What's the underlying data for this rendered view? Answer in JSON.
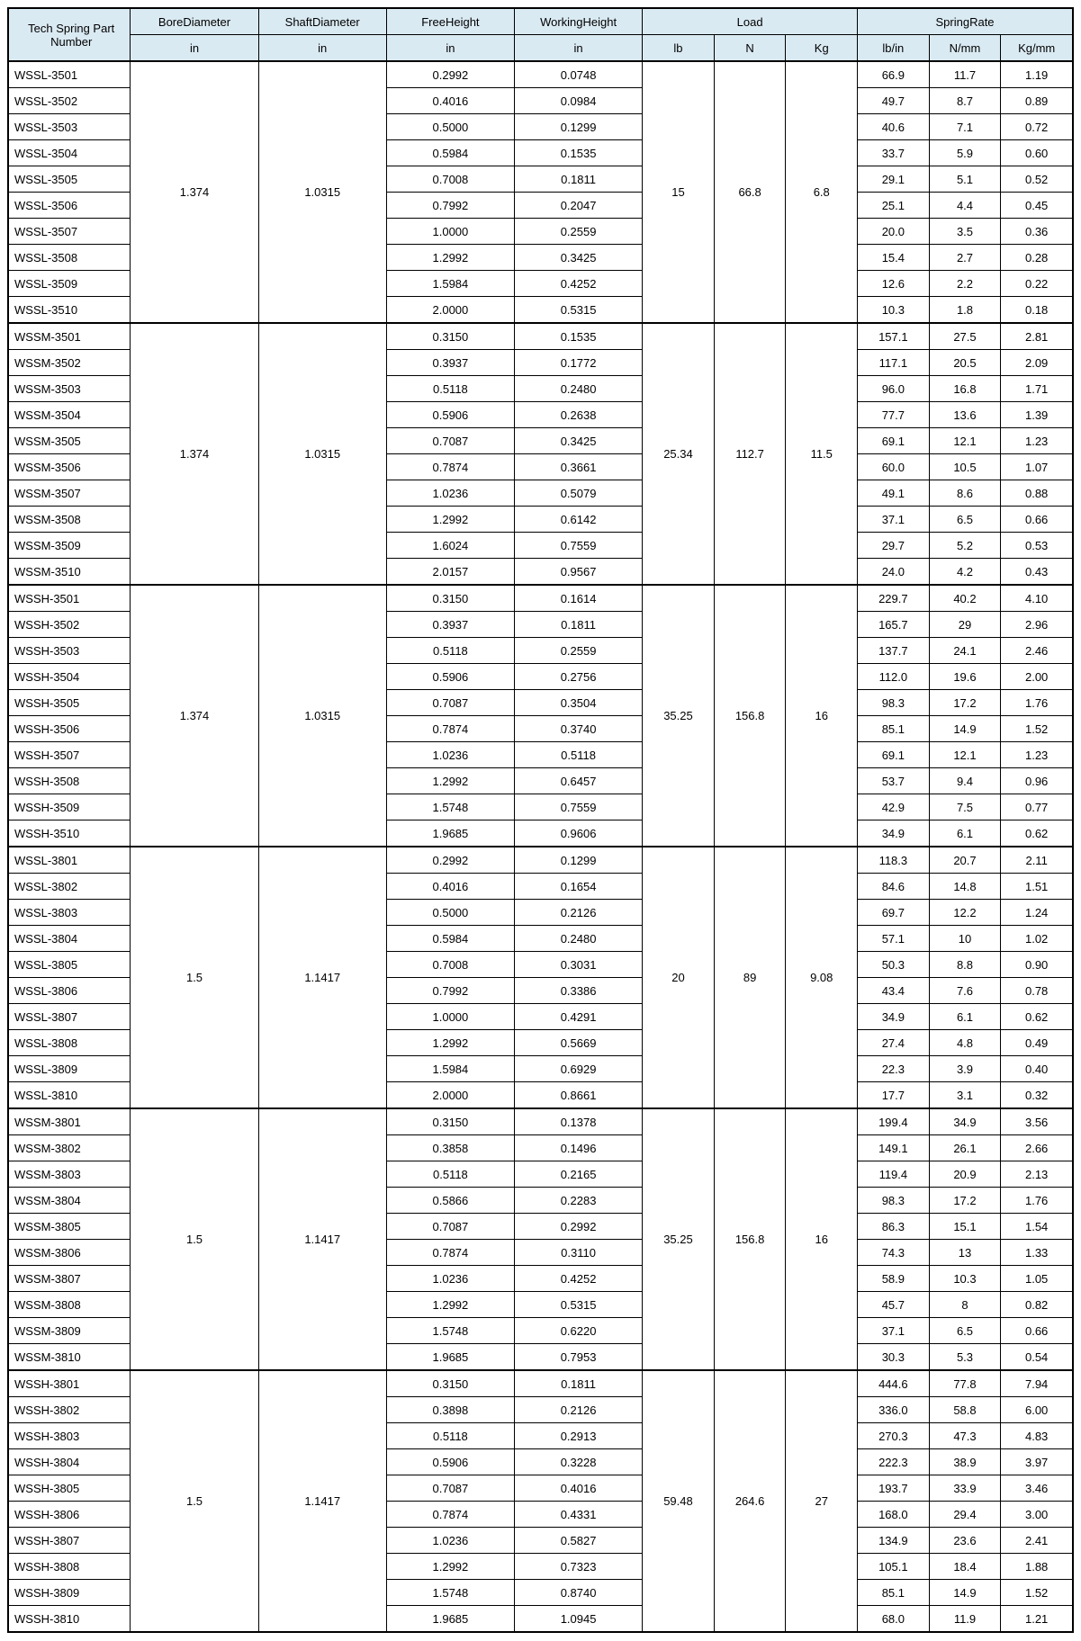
{
  "header": {
    "part": "Tech Spring Part Number",
    "bore": "BoreDiameter",
    "shaft": "ShaftDiameter",
    "free": "FreeHeight",
    "work": "WorkingHeight",
    "load": "Load",
    "rate": "SpringRate",
    "unit_in": "in",
    "unit_lb": "lb",
    "unit_n": "N",
    "unit_kg": "Kg",
    "unit_lbin": "lb/in",
    "unit_nmm": "N/mm",
    "unit_kgmm": "Kg/mm"
  },
  "groups": [
    {
      "bore": "1.374",
      "shaft": "1.0315",
      "load_lb": "15",
      "load_n": "66.8",
      "load_kg": "6.8",
      "rows": [
        {
          "part": "WSSL-3501",
          "fh": "0.2992",
          "wh": "0.0748",
          "lbin": "66.9",
          "nmm": "11.7",
          "kgmm": "1.19"
        },
        {
          "part": "WSSL-3502",
          "fh": "0.4016",
          "wh": "0.0984",
          "lbin": "49.7",
          "nmm": "8.7",
          "kgmm": "0.89"
        },
        {
          "part": "WSSL-3503",
          "fh": "0.5000",
          "wh": "0.1299",
          "lbin": "40.6",
          "nmm": "7.1",
          "kgmm": "0.72"
        },
        {
          "part": "WSSL-3504",
          "fh": "0.5984",
          "wh": "0.1535",
          "lbin": "33.7",
          "nmm": "5.9",
          "kgmm": "0.60"
        },
        {
          "part": "WSSL-3505",
          "fh": "0.7008",
          "wh": "0.1811",
          "lbin": "29.1",
          "nmm": "5.1",
          "kgmm": "0.52"
        },
        {
          "part": "WSSL-3506",
          "fh": "0.7992",
          "wh": "0.2047",
          "lbin": "25.1",
          "nmm": "4.4",
          "kgmm": "0.45"
        },
        {
          "part": "WSSL-3507",
          "fh": "1.0000",
          "wh": "0.2559",
          "lbin": "20.0",
          "nmm": "3.5",
          "kgmm": "0.36"
        },
        {
          "part": "WSSL-3508",
          "fh": "1.2992",
          "wh": "0.3425",
          "lbin": "15.4",
          "nmm": "2.7",
          "kgmm": "0.28"
        },
        {
          "part": "WSSL-3509",
          "fh": "1.5984",
          "wh": "0.4252",
          "lbin": "12.6",
          "nmm": "2.2",
          "kgmm": "0.22"
        },
        {
          "part": "WSSL-3510",
          "fh": "2.0000",
          "wh": "0.5315",
          "lbin": "10.3",
          "nmm": "1.8",
          "kgmm": "0.18"
        }
      ]
    },
    {
      "bore": "1.374",
      "shaft": "1.0315",
      "load_lb": "25.34",
      "load_n": "112.7",
      "load_kg": "11.5",
      "rows": [
        {
          "part": "WSSM-3501",
          "fh": "0.3150",
          "wh": "0.1535",
          "lbin": "157.1",
          "nmm": "27.5",
          "kgmm": "2.81"
        },
        {
          "part": "WSSM-3502",
          "fh": "0.3937",
          "wh": "0.1772",
          "lbin": "117.1",
          "nmm": "20.5",
          "kgmm": "2.09"
        },
        {
          "part": "WSSM-3503",
          "fh": "0.5118",
          "wh": "0.2480",
          "lbin": "96.0",
          "nmm": "16.8",
          "kgmm": "1.71"
        },
        {
          "part": "WSSM-3504",
          "fh": "0.5906",
          "wh": "0.2638",
          "lbin": "77.7",
          "nmm": "13.6",
          "kgmm": "1.39"
        },
        {
          "part": "WSSM-3505",
          "fh": "0.7087",
          "wh": "0.3425",
          "lbin": "69.1",
          "nmm": "12.1",
          "kgmm": "1.23"
        },
        {
          "part": "WSSM-3506",
          "fh": "0.7874",
          "wh": "0.3661",
          "lbin": "60.0",
          "nmm": "10.5",
          "kgmm": "1.07"
        },
        {
          "part": "WSSM-3507",
          "fh": "1.0236",
          "wh": "0.5079",
          "lbin": "49.1",
          "nmm": "8.6",
          "kgmm": "0.88"
        },
        {
          "part": "WSSM-3508",
          "fh": "1.2992",
          "wh": "0.6142",
          "lbin": "37.1",
          "nmm": "6.5",
          "kgmm": "0.66"
        },
        {
          "part": "WSSM-3509",
          "fh": "1.6024",
          "wh": "0.7559",
          "lbin": "29.7",
          "nmm": "5.2",
          "kgmm": "0.53"
        },
        {
          "part": "WSSM-3510",
          "fh": "2.0157",
          "wh": "0.9567",
          "lbin": "24.0",
          "nmm": "4.2",
          "kgmm": "0.43"
        }
      ]
    },
    {
      "bore": "1.374",
      "shaft": "1.0315",
      "load_lb": "35.25",
      "load_n": "156.8",
      "load_kg": "16",
      "rows": [
        {
          "part": "WSSH-3501",
          "fh": "0.3150",
          "wh": "0.1614",
          "lbin": "229.7",
          "nmm": "40.2",
          "kgmm": "4.10"
        },
        {
          "part": "WSSH-3502",
          "fh": "0.3937",
          "wh": "0.1811",
          "lbin": "165.7",
          "nmm": "29",
          "kgmm": "2.96"
        },
        {
          "part": "WSSH-3503",
          "fh": "0.5118",
          "wh": "0.2559",
          "lbin": "137.7",
          "nmm": "24.1",
          "kgmm": "2.46"
        },
        {
          "part": "WSSH-3504",
          "fh": "0.5906",
          "wh": "0.2756",
          "lbin": "112.0",
          "nmm": "19.6",
          "kgmm": "2.00"
        },
        {
          "part": "WSSH-3505",
          "fh": "0.7087",
          "wh": "0.3504",
          "lbin": "98.3",
          "nmm": "17.2",
          "kgmm": "1.76"
        },
        {
          "part": "WSSH-3506",
          "fh": "0.7874",
          "wh": "0.3740",
          "lbin": "85.1",
          "nmm": "14.9",
          "kgmm": "1.52"
        },
        {
          "part": "WSSH-3507",
          "fh": "1.0236",
          "wh": "0.5118",
          "lbin": "69.1",
          "nmm": "12.1",
          "kgmm": "1.23"
        },
        {
          "part": "WSSH-3508",
          "fh": "1.2992",
          "wh": "0.6457",
          "lbin": "53.7",
          "nmm": "9.4",
          "kgmm": "0.96"
        },
        {
          "part": "WSSH-3509",
          "fh": "1.5748",
          "wh": "0.7559",
          "lbin": "42.9",
          "nmm": "7.5",
          "kgmm": "0.77"
        },
        {
          "part": "WSSH-3510",
          "fh": "1.9685",
          "wh": "0.9606",
          "lbin": "34.9",
          "nmm": "6.1",
          "kgmm": "0.62"
        }
      ]
    },
    {
      "bore": "1.5",
      "shaft": "1.1417",
      "load_lb": "20",
      "load_n": "89",
      "load_kg": "9.08",
      "rows": [
        {
          "part": "WSSL-3801",
          "fh": "0.2992",
          "wh": "0.1299",
          "lbin": "118.3",
          "nmm": "20.7",
          "kgmm": "2.11"
        },
        {
          "part": "WSSL-3802",
          "fh": "0.4016",
          "wh": "0.1654",
          "lbin": "84.6",
          "nmm": "14.8",
          "kgmm": "1.51"
        },
        {
          "part": "WSSL-3803",
          "fh": "0.5000",
          "wh": "0.2126",
          "lbin": "69.7",
          "nmm": "12.2",
          "kgmm": "1.24"
        },
        {
          "part": "WSSL-3804",
          "fh": "0.5984",
          "wh": "0.2480",
          "lbin": "57.1",
          "nmm": "10",
          "kgmm": "1.02"
        },
        {
          "part": "WSSL-3805",
          "fh": "0.7008",
          "wh": "0.3031",
          "lbin": "50.3",
          "nmm": "8.8",
          "kgmm": "0.90"
        },
        {
          "part": "WSSL-3806",
          "fh": "0.7992",
          "wh": "0.3386",
          "lbin": "43.4",
          "nmm": "7.6",
          "kgmm": "0.78"
        },
        {
          "part": "WSSL-3807",
          "fh": "1.0000",
          "wh": "0.4291",
          "lbin": "34.9",
          "nmm": "6.1",
          "kgmm": "0.62"
        },
        {
          "part": "WSSL-3808",
          "fh": "1.2992",
          "wh": "0.5669",
          "lbin": "27.4",
          "nmm": "4.8",
          "kgmm": "0.49"
        },
        {
          "part": "WSSL-3809",
          "fh": "1.5984",
          "wh": "0.6929",
          "lbin": "22.3",
          "nmm": "3.9",
          "kgmm": "0.40"
        },
        {
          "part": "WSSL-3810",
          "fh": "2.0000",
          "wh": "0.8661",
          "lbin": "17.7",
          "nmm": "3.1",
          "kgmm": "0.32"
        }
      ]
    },
    {
      "bore": "1.5",
      "shaft": "1.1417",
      "load_lb": "35.25",
      "load_n": "156.8",
      "load_kg": "16",
      "rows": [
        {
          "part": "WSSM-3801",
          "fh": "0.3150",
          "wh": "0.1378",
          "lbin": "199.4",
          "nmm": "34.9",
          "kgmm": "3.56"
        },
        {
          "part": "WSSM-3802",
          "fh": "0.3858",
          "wh": "0.1496",
          "lbin": "149.1",
          "nmm": "26.1",
          "kgmm": "2.66"
        },
        {
          "part": "WSSM-3803",
          "fh": "0.5118",
          "wh": "0.2165",
          "lbin": "119.4",
          "nmm": "20.9",
          "kgmm": "2.13"
        },
        {
          "part": "WSSM-3804",
          "fh": "0.5866",
          "wh": "0.2283",
          "lbin": "98.3",
          "nmm": "17.2",
          "kgmm": "1.76"
        },
        {
          "part": "WSSM-3805",
          "fh": "0.7087",
          "wh": "0.2992",
          "lbin": "86.3",
          "nmm": "15.1",
          "kgmm": "1.54"
        },
        {
          "part": "WSSM-3806",
          "fh": "0.7874",
          "wh": "0.3110",
          "lbin": "74.3",
          "nmm": "13",
          "kgmm": "1.33"
        },
        {
          "part": "WSSM-3807",
          "fh": "1.0236",
          "wh": "0.4252",
          "lbin": "58.9",
          "nmm": "10.3",
          "kgmm": "1.05"
        },
        {
          "part": "WSSM-3808",
          "fh": "1.2992",
          "wh": "0.5315",
          "lbin": "45.7",
          "nmm": "8",
          "kgmm": "0.82"
        },
        {
          "part": "WSSM-3809",
          "fh": "1.5748",
          "wh": "0.6220",
          "lbin": "37.1",
          "nmm": "6.5",
          "kgmm": "0.66"
        },
        {
          "part": "WSSM-3810",
          "fh": "1.9685",
          "wh": "0.7953",
          "lbin": "30.3",
          "nmm": "5.3",
          "kgmm": "0.54"
        }
      ]
    },
    {
      "bore": "1.5",
      "shaft": "1.1417",
      "load_lb": "59.48",
      "load_n": "264.6",
      "load_kg": "27",
      "rows": [
        {
          "part": "WSSH-3801",
          "fh": "0.3150",
          "wh": "0.1811",
          "lbin": "444.6",
          "nmm": "77.8",
          "kgmm": "7.94"
        },
        {
          "part": "WSSH-3802",
          "fh": "0.3898",
          "wh": "0.2126",
          "lbin": "336.0",
          "nmm": "58.8",
          "kgmm": "6.00"
        },
        {
          "part": "WSSH-3803",
          "fh": "0.5118",
          "wh": "0.2913",
          "lbin": "270.3",
          "nmm": "47.3",
          "kgmm": "4.83"
        },
        {
          "part": "WSSH-3804",
          "fh": "0.5906",
          "wh": "0.3228",
          "lbin": "222.3",
          "nmm": "38.9",
          "kgmm": "3.97"
        },
        {
          "part": "WSSH-3805",
          "fh": "0.7087",
          "wh": "0.4016",
          "lbin": "193.7",
          "nmm": "33.9",
          "kgmm": "3.46"
        },
        {
          "part": "WSSH-3806",
          "fh": "0.7874",
          "wh": "0.4331",
          "lbin": "168.0",
          "nmm": "29.4",
          "kgmm": "3.00"
        },
        {
          "part": "WSSH-3807",
          "fh": "1.0236",
          "wh": "0.5827",
          "lbin": "134.9",
          "nmm": "23.6",
          "kgmm": "2.41"
        },
        {
          "part": "WSSH-3808",
          "fh": "1.2992",
          "wh": "0.7323",
          "lbin": "105.1",
          "nmm": "18.4",
          "kgmm": "1.88"
        },
        {
          "part": "WSSH-3809",
          "fh": "1.5748",
          "wh": "0.8740",
          "lbin": "85.1",
          "nmm": "14.9",
          "kgmm": "1.52"
        },
        {
          "part": "WSSH-3810",
          "fh": "1.9685",
          "wh": "1.0945",
          "lbin": "68.0",
          "nmm": "11.9",
          "kgmm": "1.21"
        }
      ]
    }
  ]
}
